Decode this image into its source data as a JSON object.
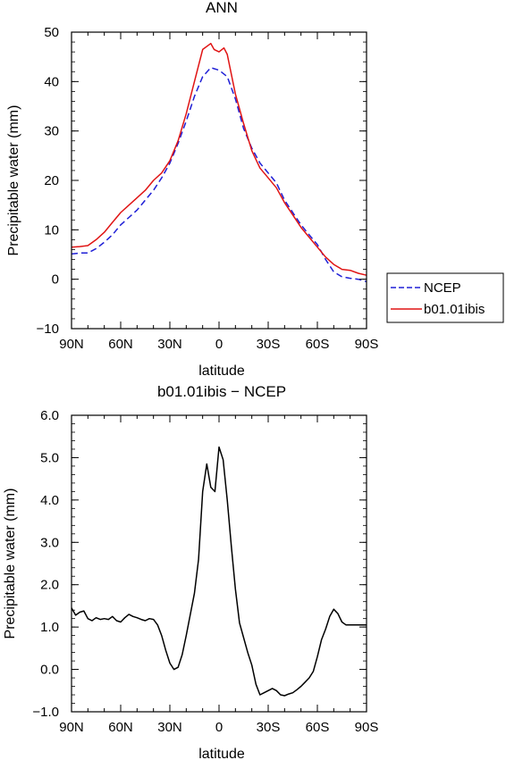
{
  "chart_data": [
    {
      "type": "line",
      "title": "ANN",
      "xlabel": "latitude",
      "ylabel": "Precipitable water (mm)",
      "xlim": [
        90,
        -90
      ],
      "ylim": [
        -10,
        50
      ],
      "xticks": [
        90,
        60,
        30,
        0,
        -30,
        -60,
        -90
      ],
      "xtick_labels": [
        "90N",
        "60N",
        "30N",
        "0",
        "30S",
        "60S",
        "90S"
      ],
      "yticks": [
        -10,
        0,
        10,
        20,
        30,
        40,
        50
      ],
      "ytick_labels": [
        "−10",
        "0",
        "10",
        "20",
        "30",
        "40",
        "50"
      ],
      "legend_position": "outside-right",
      "series": [
        {
          "name": "NCEP",
          "color": "#1f1fd6",
          "dash": "dashed",
          "x": [
            90,
            85,
            80,
            75,
            70,
            65,
            60,
            55,
            50,
            45,
            40,
            35,
            30,
            25,
            20,
            15,
            10,
            5,
            0,
            -5,
            -10,
            -15,
            -20,
            -25,
            -30,
            -35,
            -40,
            -45,
            -50,
            -55,
            -60,
            -65,
            -70,
            -75,
            -80,
            -85,
            -90
          ],
          "values": [
            5.1,
            5.3,
            5.3,
            6.2,
            7.5,
            9.0,
            11.0,
            12.5,
            14.0,
            16.0,
            18.0,
            20.5,
            23.5,
            27.5,
            32.0,
            37.0,
            41.0,
            42.8,
            42.3,
            41.0,
            36.5,
            30.5,
            26.5,
            23.5,
            21.5,
            19.5,
            16.0,
            13.5,
            11.0,
            9.0,
            7.0,
            4.0,
            1.5,
            0.5,
            0.2,
            0.0,
            -0.5
          ]
        },
        {
          "name": "b01.01ibis",
          "color": "#e01414",
          "dash": "solid",
          "x": [
            90,
            85,
            80,
            75,
            70,
            65,
            60,
            55,
            50,
            45,
            40,
            35,
            30,
            25,
            20,
            15,
            10,
            5,
            3,
            0,
            -3,
            -5,
            -10,
            -15,
            -20,
            -25,
            -30,
            -35,
            -40,
            -45,
            -50,
            -55,
            -60,
            -65,
            -70,
            -75,
            -80,
            -85,
            -90
          ],
          "values": [
            6.5,
            6.6,
            6.8,
            8.0,
            9.5,
            11.5,
            13.5,
            15.0,
            16.5,
            18.0,
            20.0,
            21.5,
            24.0,
            28.0,
            33.5,
            40.0,
            46.5,
            47.7,
            46.5,
            46.0,
            46.8,
            45.5,
            37.5,
            31.5,
            26.0,
            22.5,
            20.5,
            18.5,
            15.5,
            13.0,
            10.5,
            8.5,
            6.5,
            4.5,
            3.0,
            2.0,
            1.8,
            1.2,
            0.8
          ]
        }
      ]
    },
    {
      "type": "line",
      "title": "b01.01ibis − NCEP",
      "xlabel": "latitude",
      "ylabel": "Precipitable water (mm)",
      "xlim": [
        90,
        -90
      ],
      "ylim": [
        -1,
        6
      ],
      "xticks": [
        90,
        60,
        30,
        0,
        -30,
        -60,
        -90
      ],
      "xtick_labels": [
        "90N",
        "60N",
        "30N",
        "0",
        "30S",
        "60S",
        "90S"
      ],
      "yticks": [
        -1,
        0,
        1,
        2,
        3,
        4,
        5,
        6
      ],
      "ytick_labels": [
        "−1.0",
        "0.0",
        "1.0",
        "2.0",
        "3.0",
        "4.0",
        "5.0",
        "6.0"
      ],
      "series": [
        {
          "color": "#000000",
          "dash": "solid",
          "x": [
            90,
            87.5,
            85,
            82.5,
            80,
            77.5,
            75,
            72.5,
            70,
            67.5,
            65,
            62.5,
            60,
            57.5,
            55,
            52.5,
            50,
            47.5,
            45,
            42.5,
            40,
            37.5,
            35,
            32.5,
            30,
            27.5,
            25,
            22.5,
            20,
            17.5,
            15,
            12.5,
            10,
            7.5,
            5,
            2.5,
            0,
            -2.5,
            -5,
            -7.5,
            -10,
            -12.5,
            -15,
            -17.5,
            -20,
            -22.5,
            -25,
            -27.5,
            -30,
            -32.5,
            -35,
            -37.5,
            -40,
            -42.5,
            -45,
            -47.5,
            -50,
            -52.5,
            -55,
            -57.5,
            -60,
            -62.5,
            -65,
            -67.5,
            -70,
            -72.5,
            -75,
            -77.5,
            -80,
            -82.5,
            -85,
            -87.5,
            -90
          ],
          "values": [
            1.45,
            1.28,
            1.35,
            1.38,
            1.2,
            1.15,
            1.22,
            1.18,
            1.2,
            1.18,
            1.25,
            1.15,
            1.12,
            1.22,
            1.3,
            1.25,
            1.22,
            1.18,
            1.15,
            1.2,
            1.18,
            1.05,
            0.8,
            0.45,
            0.15,
            0.0,
            0.05,
            0.35,
            0.8,
            1.3,
            1.8,
            2.6,
            4.2,
            4.85,
            4.3,
            4.2,
            5.25,
            4.95,
            4.0,
            2.9,
            1.9,
            1.1,
            0.75,
            0.4,
            0.1,
            -0.35,
            -0.6,
            -0.55,
            -0.5,
            -0.45,
            -0.5,
            -0.6,
            -0.62,
            -0.58,
            -0.55,
            -0.48,
            -0.4,
            -0.3,
            -0.2,
            -0.05,
            0.3,
            0.7,
            0.95,
            1.25,
            1.42,
            1.32,
            1.12,
            1.05,
            1.05,
            1.05,
            1.05,
            1.05,
            1.05
          ]
        }
      ]
    }
  ]
}
